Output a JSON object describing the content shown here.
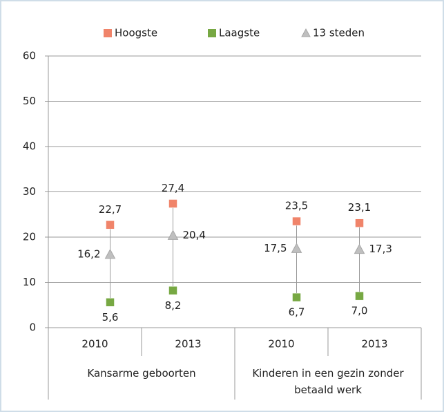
{
  "chart_data": {
    "type": "dot",
    "categories": [
      "2010",
      "2013",
      "2010",
      "2013"
    ],
    "groups": [
      {
        "label": "Kansarme geboorten",
        "size": 2
      },
      {
        "label": "Kinderen in een gezin zonder betaald werk",
        "size": 2
      }
    ],
    "series": [
      {
        "name": "Hoogste",
        "color": "#f0846a",
        "marker": "square",
        "label_position": "above",
        "values": [
          22.7,
          27.4,
          23.5,
          23.1
        ],
        "value_labels": [
          "22,7",
          "27,4",
          "23,5",
          "23,1"
        ]
      },
      {
        "name": "Laagste",
        "color": "#77a843",
        "marker": "square",
        "label_position": "below",
        "values": [
          5.6,
          8.2,
          6.7,
          7.0
        ],
        "value_labels": [
          "5,6",
          "8,2",
          "6,7",
          "7,0"
        ]
      },
      {
        "name": "13 steden",
        "color": "#bfbfbf",
        "marker": "triangle",
        "label_position": "side",
        "values": [
          16.2,
          20.4,
          17.5,
          17.3
        ],
        "value_labels": [
          "16,2",
          "20,4",
          "17,5",
          "17,3"
        ]
      }
    ],
    "ylim": [
      0,
      60
    ],
    "yticks": [
      0,
      10,
      20,
      30,
      40,
      50,
      60
    ],
    "grid": true,
    "legend": "top"
  }
}
